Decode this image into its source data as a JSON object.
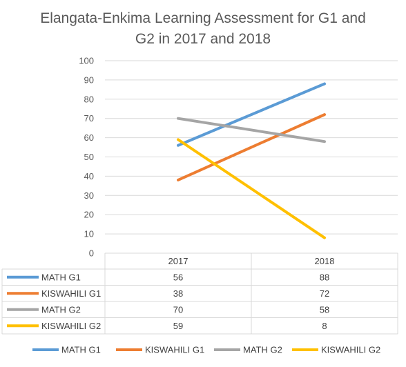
{
  "chart_data": {
    "type": "line",
    "title_lines": [
      "Elangata-Enkima Learning Assessment for G1 and",
      "G2 in 2017 and 2018"
    ],
    "categories": [
      "2017",
      "2018"
    ],
    "ylim": [
      0,
      100
    ],
    "yticks": [
      "0",
      "10",
      "20",
      "30",
      "40",
      "50",
      "60",
      "70",
      "80",
      "90",
      "100"
    ],
    "grid": true,
    "legend_position": "bottom",
    "data_table": true,
    "series": [
      {
        "name": "MATH G1",
        "values": [
          56,
          88
        ],
        "color": "#5b9bd5"
      },
      {
        "name": "KISWAHILI G1",
        "values": [
          38,
          72
        ],
        "color": "#ed7d31"
      },
      {
        "name": "MATH G2",
        "values": [
          70,
          58
        ],
        "color": "#a5a5a5"
      },
      {
        "name": "KISWAHILI G2",
        "values": [
          59,
          8
        ],
        "color": "#ffc000"
      }
    ]
  }
}
